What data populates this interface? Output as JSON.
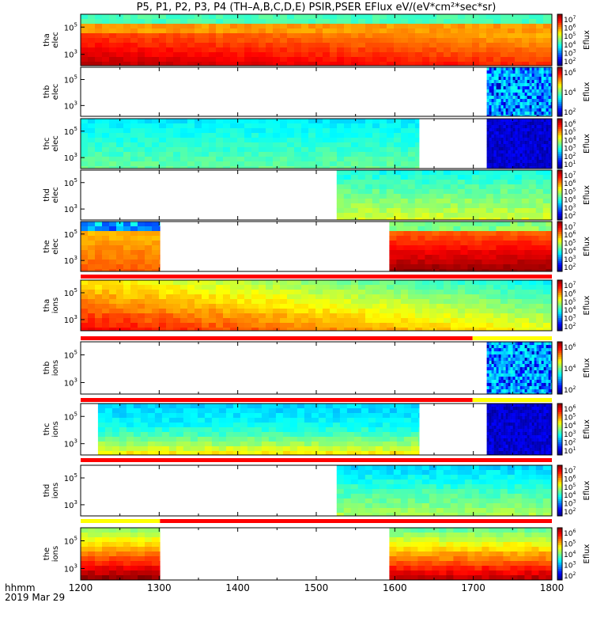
{
  "title": "P5, P1, P2, P3, P4 (TH–A,B,C,D,E) PSIR,PSER EFlux eV/(eV*cm²*sec*sr)",
  "time_label": {
    "format": "hhmm",
    "date": "2019 Mar 29"
  },
  "colors": {
    "flag_red": "#ff0000",
    "flag_yellow": "#ffff00",
    "empty": "#ffffff"
  },
  "chart_data": {
    "type": "heatmap",
    "x_ticks": [
      "1200",
      "1300",
      "1400",
      "1500",
      "1600",
      "1700",
      "1800"
    ],
    "x_range": [
      1200,
      1800
    ],
    "colorbar_label": "Eflux",
    "panels": [
      {
        "name": "tha elec",
        "label_line1": "tha",
        "label_line2": "elec",
        "y_ticks": [
          {
            "base": "10",
            "exp": "5"
          },
          {
            "base": "10",
            "exp": "3"
          }
        ],
        "cbar_ticks": [
          {
            "base": "10",
            "exp": "7"
          },
          {
            "base": "10",
            "exp": "6"
          },
          {
            "base": "10",
            "exp": "5"
          },
          {
            "base": "10",
            "exp": "4"
          },
          {
            "base": "10",
            "exp": "3"
          },
          {
            "base": "10",
            "exp": "2"
          }
        ],
        "segments": [
          {
            "x0": 1200,
            "x1": 1800,
            "style": "tha_e"
          }
        ]
      },
      {
        "name": "thb elec",
        "label_line1": "thb",
        "label_line2": "elec",
        "y_ticks": [
          {
            "base": "10",
            "exp": "5"
          },
          {
            "base": "10",
            "exp": "3"
          }
        ],
        "cbar_ticks": [
          {
            "base": "10",
            "exp": "6"
          },
          {
            "base": "10",
            "exp": "4"
          },
          {
            "base": "10",
            "exp": "2"
          }
        ],
        "segments": [
          {
            "x0": 1717,
            "x1": 1800,
            "style": "noise_blue"
          }
        ]
      },
      {
        "name": "thc elec",
        "label_line1": "thc",
        "label_line2": "elec",
        "y_ticks": [
          {
            "base": "10",
            "exp": "5"
          },
          {
            "base": "10",
            "exp": "3"
          }
        ],
        "cbar_ticks": [
          {
            "base": "10",
            "exp": "6"
          },
          {
            "base": "10",
            "exp": "5"
          },
          {
            "base": "10",
            "exp": "4"
          },
          {
            "base": "10",
            "exp": "3"
          },
          {
            "base": "10",
            "exp": "2"
          },
          {
            "base": "10",
            "exp": "1"
          }
        ],
        "segments": [
          {
            "x0": 1200,
            "x1": 1631,
            "style": "cyan_e"
          },
          {
            "x0": 1717,
            "x1": 1800,
            "style": "noise_purple"
          }
        ]
      },
      {
        "name": "thd elec",
        "label_line1": "thd",
        "label_line2": "elec",
        "y_ticks": [
          {
            "base": "10",
            "exp": "5"
          },
          {
            "base": "10",
            "exp": "3"
          }
        ],
        "cbar_ticks": [
          {
            "base": "10",
            "exp": "7"
          },
          {
            "base": "10",
            "exp": "6"
          },
          {
            "base": "10",
            "exp": "5"
          },
          {
            "base": "10",
            "exp": "4"
          },
          {
            "base": "10",
            "exp": "3"
          },
          {
            "base": "10",
            "exp": "2"
          }
        ],
        "segments": [
          {
            "x0": 1526,
            "x1": 1800,
            "style": "thd_e"
          }
        ]
      },
      {
        "name": "the elec",
        "label_line1": "the",
        "label_line2": "elec",
        "y_ticks": [
          {
            "base": "10",
            "exp": "5"
          },
          {
            "base": "10",
            "exp": "3"
          }
        ],
        "cbar_ticks": [
          {
            "base": "10",
            "exp": "7"
          },
          {
            "base": "10",
            "exp": "6"
          },
          {
            "base": "10",
            "exp": "5"
          },
          {
            "base": "10",
            "exp": "4"
          },
          {
            "base": "10",
            "exp": "3"
          },
          {
            "base": "10",
            "exp": "2"
          }
        ],
        "segments": [
          {
            "x0": 1200,
            "x1": 1301,
            "style": "the_e_left"
          },
          {
            "x0": 1593,
            "x1": 1800,
            "style": "the_e_right"
          }
        ],
        "flag_bar": [
          {
            "x0": 1200,
            "x1": 1800,
            "color": "red"
          }
        ]
      },
      {
        "name": "tha ions",
        "label_line1": "tha",
        "label_line2": "ions",
        "y_ticks": [
          {
            "base": "10",
            "exp": "5"
          },
          {
            "base": "10",
            "exp": "3"
          }
        ],
        "cbar_ticks": [
          {
            "base": "10",
            "exp": "7"
          },
          {
            "base": "10",
            "exp": "6"
          },
          {
            "base": "10",
            "exp": "5"
          },
          {
            "base": "10",
            "exp": "4"
          },
          {
            "base": "10",
            "exp": "3"
          },
          {
            "base": "10",
            "exp": "2"
          }
        ],
        "segments": [
          {
            "x0": 1200,
            "x1": 1800,
            "style": "tha_i"
          }
        ],
        "flag_bar": [
          {
            "x0": 1200,
            "x1": 1699,
            "color": "red"
          },
          {
            "x0": 1699,
            "x1": 1800,
            "color": "yellow"
          }
        ]
      },
      {
        "name": "thb ions",
        "label_line1": "thb",
        "label_line2": "ions",
        "y_ticks": [
          {
            "base": "10",
            "exp": "5"
          },
          {
            "base": "10",
            "exp": "3"
          }
        ],
        "cbar_ticks": [
          {
            "base": "10",
            "exp": "6"
          },
          {
            "base": "10",
            "exp": "4"
          },
          {
            "base": "10",
            "exp": "2"
          }
        ],
        "segments": [
          {
            "x0": 1717,
            "x1": 1800,
            "style": "noise_blue"
          }
        ],
        "flag_bar": [
          {
            "x0": 1200,
            "x1": 1699,
            "color": "red"
          },
          {
            "x0": 1699,
            "x1": 1800,
            "color": "yellow"
          }
        ]
      },
      {
        "name": "thc ions",
        "label_line1": "thc",
        "label_line2": "ions",
        "y_ticks": [
          {
            "base": "10",
            "exp": "5"
          },
          {
            "base": "10",
            "exp": "3"
          }
        ],
        "cbar_ticks": [
          {
            "base": "10",
            "exp": "6"
          },
          {
            "base": "10",
            "exp": "5"
          },
          {
            "base": "10",
            "exp": "4"
          },
          {
            "base": "10",
            "exp": "3"
          },
          {
            "base": "10",
            "exp": "2"
          },
          {
            "base": "10",
            "exp": "1"
          }
        ],
        "segments": [
          {
            "x0": 1222,
            "x1": 1631,
            "style": "thc_i"
          },
          {
            "x0": 1717,
            "x1": 1800,
            "style": "noise_purple"
          }
        ],
        "flag_bar": [
          {
            "x0": 1200,
            "x1": 1800,
            "color": "red"
          }
        ]
      },
      {
        "name": "thd ions",
        "label_line1": "thd",
        "label_line2": "ions",
        "y_ticks": [
          {
            "base": "10",
            "exp": "5"
          },
          {
            "base": "10",
            "exp": "3"
          }
        ],
        "cbar_ticks": [
          {
            "base": "10",
            "exp": "7"
          },
          {
            "base": "10",
            "exp": "6"
          },
          {
            "base": "10",
            "exp": "5"
          },
          {
            "base": "10",
            "exp": "4"
          },
          {
            "base": "10",
            "exp": "3"
          },
          {
            "base": "10",
            "exp": "2"
          }
        ],
        "segments": [
          {
            "x0": 1526,
            "x1": 1800,
            "style": "thd_i"
          }
        ],
        "flag_bar": [
          {
            "x0": 1200,
            "x1": 1301,
            "color": "yellow"
          },
          {
            "x0": 1301,
            "x1": 1800,
            "color": "red"
          }
        ]
      },
      {
        "name": "the ions",
        "label_line1": "the",
        "label_line2": "ions",
        "y_ticks": [
          {
            "base": "10",
            "exp": "5"
          },
          {
            "base": "10",
            "exp": "3"
          }
        ],
        "cbar_ticks": [
          {
            "base": "10",
            "exp": "6"
          },
          {
            "base": "10",
            "exp": "5"
          },
          {
            "base": "10",
            "exp": "4"
          },
          {
            "base": "10",
            "exp": "3"
          },
          {
            "base": "10",
            "exp": "2"
          }
        ],
        "segments": [
          {
            "x0": 1200,
            "x1": 1301,
            "style": "the_i_left"
          },
          {
            "x0": 1593,
            "x1": 1800,
            "style": "the_i_right"
          }
        ]
      }
    ]
  }
}
